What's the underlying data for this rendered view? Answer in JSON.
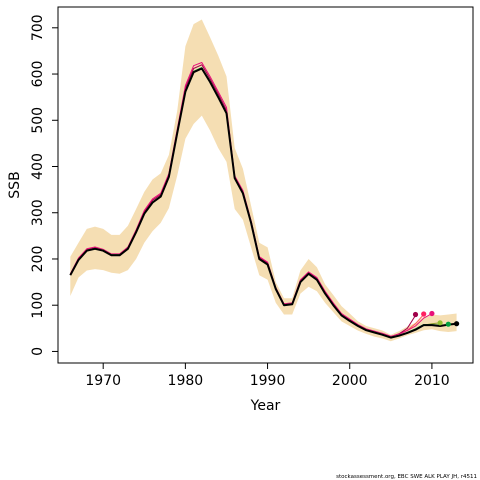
{
  "chart_data": {
    "type": "line",
    "xlabel": "Year",
    "ylabel": "SSB",
    "xlim": [
      1964.5,
      2015
    ],
    "ylim": [
      -25,
      745
    ],
    "xticks": [
      1970,
      1980,
      1990,
      2000,
      2010
    ],
    "yticks": [
      0,
      100,
      200,
      300,
      400,
      500,
      600,
      700
    ],
    "grid": false,
    "band": {
      "color": "#F5DEB3",
      "x": [
        1966,
        1967,
        1968,
        1969,
        1970,
        1971,
        1972,
        1973,
        1974,
        1975,
        1976,
        1977,
        1978,
        1979,
        1980,
        1981,
        1982,
        1983,
        1984,
        1985,
        1986,
        1987,
        1988,
        1989,
        1990,
        1991,
        1992,
        1993,
        1994,
        1995,
        1996,
        1997,
        1998,
        1999,
        2000,
        2001,
        2002,
        2003,
        2004,
        2005,
        2006,
        2007,
        2008,
        2009,
        2010,
        2011,
        2012,
        2013
      ],
      "upper": [
        205,
        235,
        265,
        270,
        265,
        252,
        252,
        272,
        308,
        345,
        372,
        385,
        425,
        520,
        660,
        708,
        718,
        680,
        640,
        595,
        440,
        395,
        315,
        235,
        225,
        150,
        115,
        115,
        175,
        200,
        182,
        145,
        122,
        98,
        82,
        65,
        55,
        50,
        45,
        36,
        44,
        54,
        62,
        75,
        80,
        78,
        80,
        82
      ],
      "lower": [
        120,
        160,
        175,
        178,
        176,
        170,
        168,
        176,
        200,
        235,
        260,
        278,
        310,
        380,
        460,
        492,
        510,
        478,
        440,
        410,
        308,
        285,
        225,
        165,
        155,
        105,
        80,
        80,
        125,
        140,
        130,
        105,
        85,
        65,
        55,
        45,
        38,
        32,
        28,
        22,
        28,
        35,
        40,
        46,
        48,
        44,
        42,
        44
      ]
    },
    "series": [
      {
        "color": "#000000",
        "x": [
          1966,
          1967,
          1968,
          1969,
          1970,
          1971,
          1972,
          1973,
          1974,
          1975,
          1976,
          1977,
          1978,
          1979,
          1980,
          1981,
          1982,
          1983,
          1984,
          1985,
          1986,
          1987,
          1988,
          1989,
          1990,
          1991,
          1992,
          1993,
          1994,
          1995,
          1996,
          1997,
          1998,
          1999,
          2000,
          2001,
          2002,
          2003,
          2004,
          2005,
          2006,
          2007,
          2008,
          2009,
          2010,
          2011,
          2012,
          2013
        ],
        "values": [
          165,
          198,
          218,
          222,
          218,
          208,
          208,
          222,
          258,
          298,
          322,
          335,
          378,
          472,
          562,
          604,
          612,
          583,
          550,
          515,
          375,
          342,
          278,
          200,
          188,
          135,
          100,
          102,
          150,
          168,
          155,
          125,
          100,
          78,
          66,
          55,
          46,
          41,
          36,
          30,
          34,
          40,
          47,
          57,
          57,
          55,
          58,
          60
        ]
      },
      {
        "color": "#00A040",
        "x": [
          1966,
          1967,
          1968,
          1969,
          1970,
          1971,
          1972,
          1973,
          1974,
          1975,
          1976,
          1977,
          1978,
          1979,
          1980,
          1981,
          1982,
          1983,
          1984,
          1985,
          1986,
          1987,
          1988,
          1989,
          1990,
          1991,
          1992,
          1993,
          1994,
          1995,
          1996,
          1997,
          1998,
          1999,
          2000,
          2001,
          2002,
          2003,
          2004,
          2005,
          2006,
          2007,
          2008,
          2009,
          2010,
          2011,
          2012
        ],
        "values": [
          166,
          199,
          219,
          223,
          219,
          209,
          209,
          223,
          259,
          299,
          323,
          336,
          379,
          473,
          563,
          606,
          614,
          585,
          552,
          517,
          376,
          343,
          279,
          201,
          189,
          136,
          101,
          103,
          151,
          169,
          156,
          126,
          101,
          79,
          67,
          56,
          47,
          42,
          37,
          31,
          35,
          41,
          49,
          58,
          58,
          57,
          57
        ]
      },
      {
        "color": "#E8107A",
        "x": [
          1966,
          1967,
          1968,
          1969,
          1970,
          1971,
          1972,
          1973,
          1974,
          1975,
          1976,
          1977,
          1978,
          1979,
          1980,
          1981,
          1982,
          1983,
          1984,
          1985,
          1986,
          1987,
          1988,
          1989,
          1990,
          1991,
          1992,
          1993,
          1994,
          1995,
          1996,
          1997,
          1998,
          1999,
          2000,
          2001,
          2002,
          2003,
          2004,
          2005,
          2006,
          2007,
          2008,
          2009,
          2010
        ],
        "values": [
          168,
          202,
          222,
          226,
          221,
          211,
          211,
          226,
          263,
          305,
          330,
          342,
          385,
          480,
          575,
          618,
          625,
          595,
          562,
          528,
          380,
          348,
          283,
          205,
          193,
          138,
          103,
          105,
          155,
          172,
          160,
          130,
          105,
          82,
          70,
          58,
          49,
          44,
          39,
          33,
          37,
          45,
          55,
          72,
          82
        ]
      },
      {
        "color": "#A0004A",
        "x": [
          1966,
          1967,
          1968,
          1969,
          1970,
          1971,
          1972,
          1973,
          1974,
          1975,
          1976,
          1977,
          1978,
          1979,
          1980,
          1981,
          1982,
          1983,
          1984,
          1985,
          1986,
          1987,
          1988,
          1989,
          1990,
          1991,
          1992,
          1993,
          1994,
          1995,
          1996,
          1997,
          1998,
          1999,
          2000,
          2001,
          2002,
          2003,
          2004,
          2005,
          2006,
          2007,
          2008
        ],
        "values": [
          167,
          200,
          220,
          224,
          220,
          210,
          210,
          224,
          261,
          302,
          327,
          339,
          382,
          477,
          570,
          612,
          620,
          590,
          557,
          522,
          378,
          345,
          281,
          203,
          191,
          137,
          102,
          104,
          153,
          171,
          158,
          128,
          103,
          80,
          68,
          57,
          48,
          43,
          38,
          32,
          38,
          50,
          78
        ]
      },
      {
        "color": "#FF6060",
        "x": [
          2005,
          2006,
          2007,
          2008,
          2009
        ],
        "values": [
          32,
          38,
          46,
          60,
          80
        ]
      },
      {
        "color": "#90A030",
        "x": [
          2005,
          2006,
          2007,
          2008,
          2009,
          2010,
          2011
        ],
        "values": [
          31,
          35,
          41,
          48,
          57,
          60,
          62
        ]
      }
    ],
    "endpoints": [
      {
        "x": 2008,
        "y": 80,
        "color": "#A0004A"
      },
      {
        "x": 2009,
        "y": 81,
        "color": "#FF2060"
      },
      {
        "x": 2010,
        "y": 82,
        "color": "#E8107A"
      },
      {
        "x": 2011,
        "y": 62,
        "color": "#90C030"
      },
      {
        "x": 2012,
        "y": 59,
        "color": "#00A040"
      },
      {
        "x": 2013,
        "y": 60,
        "color": "#000000"
      }
    ]
  },
  "footer": "stockassessment.org, EBC SWE ALK PLAY JH, r4511"
}
